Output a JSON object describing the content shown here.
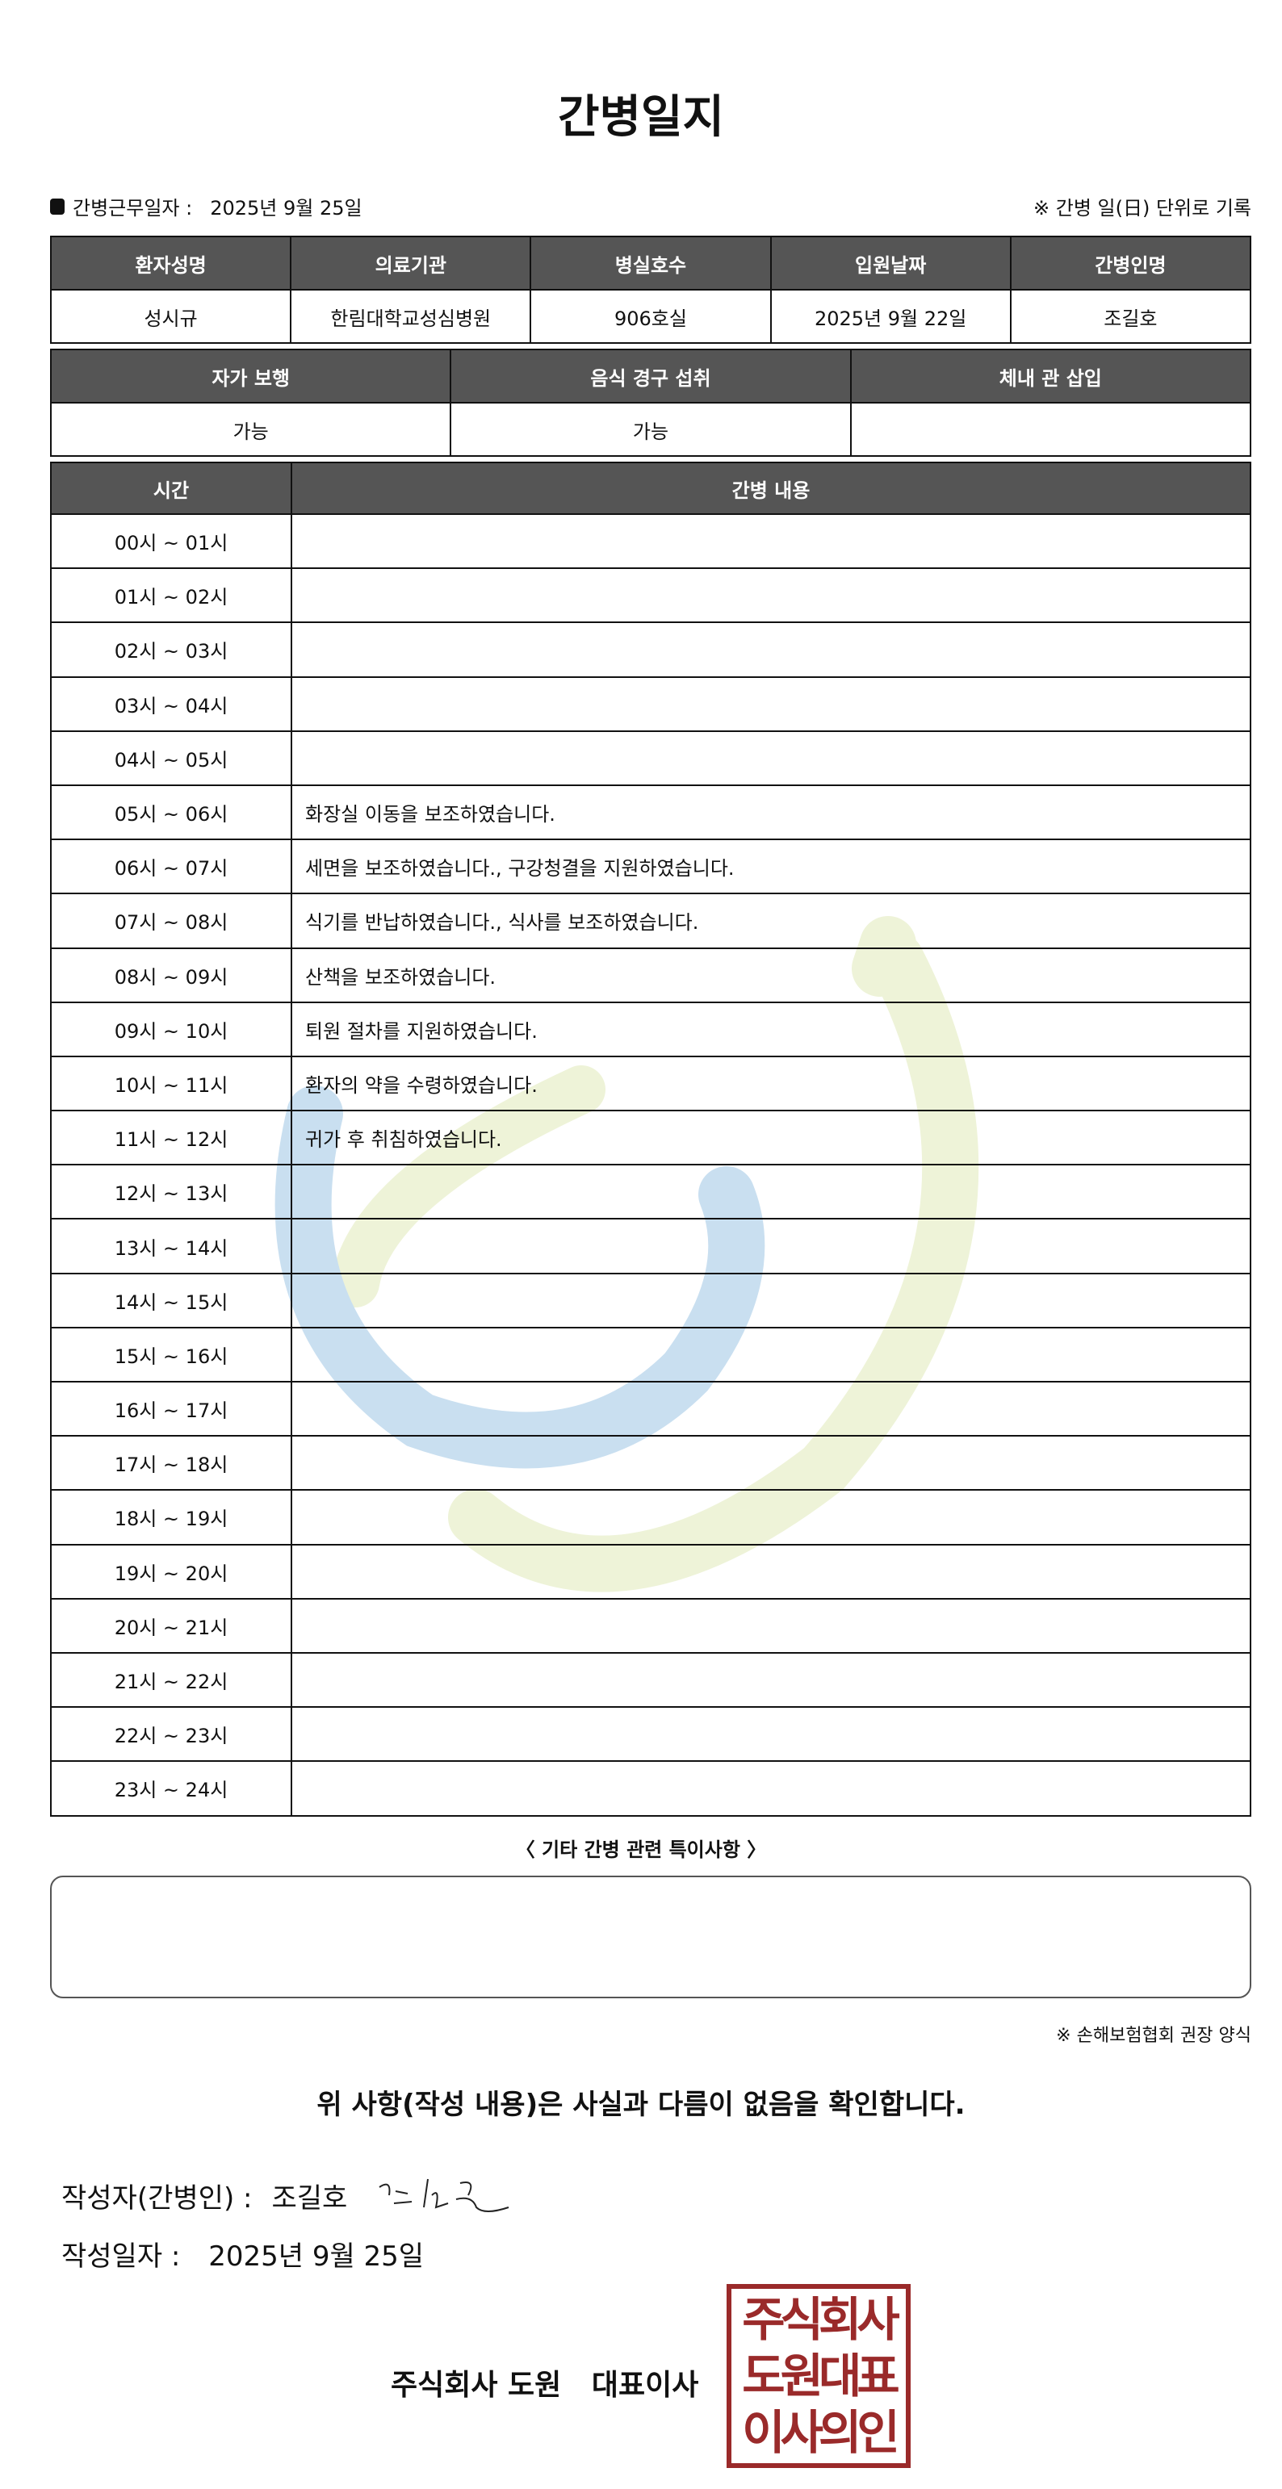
{
  "title": "간병일지",
  "info": {
    "work_date_label": "간병근무일자 :",
    "work_date": "2025년 9월 25일",
    "unit_note": "※ 간병 일(日) 단위로 기록"
  },
  "patient_table": {
    "headers": [
      "환자성명",
      "의료기관",
      "병실호수",
      "입원날짜",
      "간병인명"
    ],
    "values": [
      "성시규",
      "한림대학교성심병원",
      "906호실",
      "2025년 9월 22일",
      "조길호"
    ]
  },
  "status_table": {
    "headers": [
      "자가 보행",
      "음식 경구 섭취",
      "체내 관 삽입"
    ],
    "values": [
      "가능",
      "가능",
      ""
    ]
  },
  "log_table": {
    "headers": [
      "시간",
      "간병 내용"
    ],
    "rows": [
      [
        "00시 ~ 01시",
        ""
      ],
      [
        "01시 ~ 02시",
        ""
      ],
      [
        "02시 ~ 03시",
        ""
      ],
      [
        "03시 ~ 04시",
        ""
      ],
      [
        "04시 ~ 05시",
        ""
      ],
      [
        "05시 ~ 06시",
        "화장실 이동을 보조하였습니다."
      ],
      [
        "06시 ~ 07시",
        "세면을 보조하였습니다., 구강청결을 지원하였습니다."
      ],
      [
        "07시 ~ 08시",
        "식기를 반납하였습니다., 식사를 보조하였습니다."
      ],
      [
        "08시 ~ 09시",
        "산책을 보조하였습니다."
      ],
      [
        "09시 ~ 10시",
        "퇴원 절차를 지원하였습니다."
      ],
      [
        "10시 ~ 11시",
        "환자의 약을 수령하였습니다."
      ],
      [
        "11시 ~ 12시",
        "귀가 후 취침하였습니다."
      ],
      [
        "12시 ~ 13시",
        ""
      ],
      [
        "13시 ~ 14시",
        ""
      ],
      [
        "14시 ~ 15시",
        ""
      ],
      [
        "15시 ~ 16시",
        ""
      ],
      [
        "16시 ~ 17시",
        ""
      ],
      [
        "17시 ~ 18시",
        ""
      ],
      [
        "18시 ~ 19시",
        ""
      ],
      [
        "19시 ~ 20시",
        ""
      ],
      [
        "20시 ~ 21시",
        ""
      ],
      [
        "21시 ~ 22시",
        ""
      ],
      [
        "22시 ~ 23시",
        ""
      ],
      [
        "23시 ~ 24시",
        ""
      ]
    ]
  },
  "notes": {
    "heading": "〈 기타 간병 관련 특이사항 〉",
    "content": ""
  },
  "form_note": "※ 손해보험협회 권장 양식",
  "confirm": "위 사항(작성 내용)은 사실과 다름이 없음을 확인합니다.",
  "writer": {
    "label": "작성자(간병인) :",
    "name": "조길호"
  },
  "write_date": {
    "label": "작성일자 :",
    "value": "2025년 9월 25일"
  },
  "company": "주식회사 도원   대표이사",
  "seal_text": [
    "주식회사",
    "도원대표",
    "이사의인"
  ],
  "colors": {
    "header_bg": "#555555",
    "seal": "#9a2a2a",
    "watermark_blue": "#c9dff0",
    "watermark_green": "#eef3d8"
  }
}
